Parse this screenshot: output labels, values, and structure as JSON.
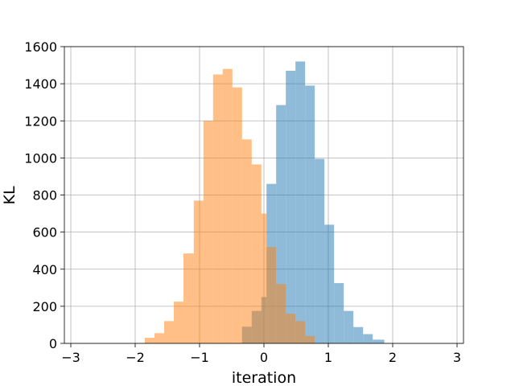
{
  "chart_data": {
    "type": "bar",
    "title": "",
    "xlabel": "iteration",
    "ylabel": "KL",
    "xlim": [
      -3.1,
      3.1
    ],
    "ylim": [
      0,
      1600
    ],
    "xticks": [
      "−3",
      "−2",
      "−1",
      "0",
      "1",
      "2",
      "3"
    ],
    "xtick_values": [
      -3,
      -2,
      -1,
      0,
      1,
      2,
      3
    ],
    "yticks": [
      "0",
      "200",
      "400",
      "600",
      "800",
      "1000",
      "1200",
      "1400",
      "1600"
    ],
    "ytick_values": [
      0,
      200,
      400,
      600,
      800,
      1000,
      1200,
      1400,
      1600
    ],
    "grid": true,
    "legend": "none",
    "series": [
      {
        "color": "#1f77b4",
        "opacity": 0.5,
        "bins": [
          [
            -0.34,
            -0.19,
            90
          ],
          [
            -0.19,
            -0.04,
            175
          ],
          [
            -0.04,
            0.04,
            250
          ],
          [
            0.04,
            0.19,
            860
          ],
          [
            0.19,
            0.34,
            1285
          ],
          [
            0.34,
            0.49,
            1470
          ],
          [
            0.49,
            0.64,
            1520
          ],
          [
            0.64,
            0.79,
            1390
          ],
          [
            0.79,
            0.94,
            995
          ],
          [
            0.94,
            1.09,
            640
          ],
          [
            1.09,
            1.24,
            325
          ],
          [
            1.24,
            1.39,
            175
          ],
          [
            1.39,
            1.54,
            88
          ],
          [
            1.54,
            1.69,
            50
          ],
          [
            1.69,
            1.87,
            20
          ]
        ]
      },
      {
        "color": "#ff7f0e",
        "opacity": 0.5,
        "bins": [
          [
            -1.85,
            -1.7,
            30
          ],
          [
            -1.7,
            -1.55,
            55
          ],
          [
            -1.55,
            -1.4,
            120
          ],
          [
            -1.4,
            -1.25,
            225
          ],
          [
            -1.25,
            -1.09,
            485
          ],
          [
            -1.09,
            -0.94,
            770
          ],
          [
            -0.94,
            -0.79,
            1200
          ],
          [
            -0.79,
            -0.64,
            1450
          ],
          [
            -0.64,
            -0.49,
            1480
          ],
          [
            -0.49,
            -0.34,
            1380
          ],
          [
            -0.34,
            -0.19,
            1100
          ],
          [
            -0.19,
            -0.04,
            965
          ],
          [
            -0.04,
            0.04,
            700
          ],
          [
            0.04,
            0.19,
            520
          ],
          [
            0.19,
            0.34,
            320
          ],
          [
            0.34,
            0.49,
            160
          ],
          [
            0.49,
            0.64,
            120
          ],
          [
            0.64,
            0.79,
            40
          ]
        ]
      }
    ]
  }
}
